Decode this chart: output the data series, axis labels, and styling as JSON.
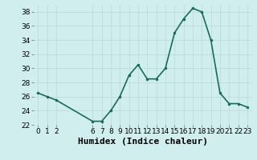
{
  "x": [
    0,
    1,
    2,
    6,
    7,
    8,
    9,
    10,
    11,
    12,
    13,
    14,
    15,
    16,
    17,
    18,
    19,
    20,
    21,
    22,
    23
  ],
  "y": [
    26.5,
    26.0,
    25.5,
    22.5,
    22.5,
    24.0,
    26.0,
    29.0,
    30.5,
    28.5,
    28.5,
    30.0,
    35.0,
    37.0,
    38.5,
    38.0,
    34.0,
    26.5,
    25.0,
    25.0,
    24.5
  ],
  "line_color": "#1a6b5a",
  "marker_color": "#1a6b5a",
  "bg_color": "#d0eeee",
  "grid_color": "#b8d8d8",
  "xlabel": "Humidex (Indice chaleur)",
  "ylim": [
    22,
    39
  ],
  "xlim": [
    -0.5,
    23.5
  ],
  "yticks": [
    22,
    24,
    26,
    28,
    30,
    32,
    34,
    36,
    38
  ],
  "xticks": [
    0,
    1,
    2,
    6,
    7,
    8,
    9,
    10,
    11,
    12,
    13,
    14,
    15,
    16,
    17,
    18,
    19,
    20,
    21,
    22,
    23
  ],
  "xtick_labels": [
    "0",
    "1",
    "2",
    "6",
    "7",
    "8",
    "9",
    "10",
    "11",
    "12",
    "13",
    "14",
    "15",
    "16",
    "17",
    "18",
    "19",
    "20",
    "21",
    "22",
    "23"
  ],
  "tick_fontsize": 6.5,
  "xlabel_fontsize": 8,
  "linewidth": 1.2,
  "markersize": 3
}
